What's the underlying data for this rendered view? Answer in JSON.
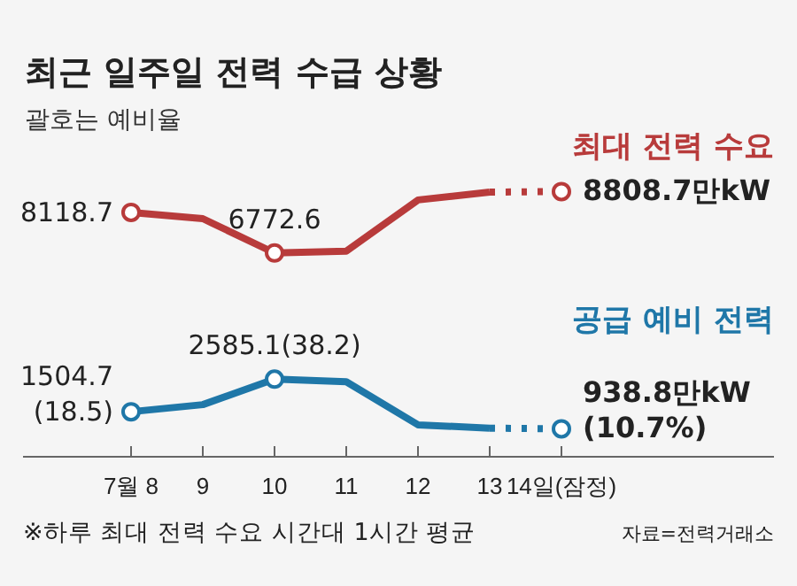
{
  "chart_data": {
    "type": "line",
    "title": "최근 일주일 전력 수급 상황",
    "subtitle": "괄호는 예비율",
    "categories": [
      "7월 8",
      "9",
      "10",
      "11",
      "12",
      "13",
      "14일(잠정)"
    ],
    "tick_labels": "x",
    "annotations": [
      "※하루 최대 전력 수요 시간대 1시간 평균",
      "자료=전력거래소"
    ],
    "series": [
      {
        "name": "최대 전력 수요",
        "color": "#b83b3b",
        "values": [
          8118.7,
          7910,
          6772.6,
          6830,
          8530,
          8790,
          null
        ]
      },
      {
        "color": "#b83b3b",
        "line_style": "dotted",
        "values": [
          null,
          null,
          null,
          null,
          null,
          8790,
          8808.7
        ]
      },
      {
        "type": "scatter",
        "color": "#b83b3b",
        "marker": "circle",
        "values": [
          8118.7,
          null,
          6772.6,
          null,
          null,
          null,
          8808.7
        ],
        "value_labels": [
          "8118.7",
          null,
          "6772.6",
          null,
          null,
          null,
          "8808.7만kW"
        ]
      },
      {
        "name": "공급 예비 전력",
        "color": "#1f77a8",
        "values": [
          1504.7,
          1740,
          2585.1,
          2500,
          1070,
          960,
          null
        ]
      },
      {
        "color": "#1f77a8",
        "line_style": "dotted",
        "values": [
          null,
          null,
          null,
          null,
          null,
          960,
          938.8
        ]
      },
      {
        "type": "scatter",
        "color": "#1f77a8",
        "marker": "circle",
        "values": [
          1504.7,
          null,
          2585.1,
          null,
          null,
          null,
          938.8
        ],
        "value_labels": [
          "1504.7\n(18.5)",
          null,
          "2585.1(38.2)",
          null,
          null,
          null,
          "938.8만kW\n(10.7%)"
        ]
      }
    ]
  }
}
